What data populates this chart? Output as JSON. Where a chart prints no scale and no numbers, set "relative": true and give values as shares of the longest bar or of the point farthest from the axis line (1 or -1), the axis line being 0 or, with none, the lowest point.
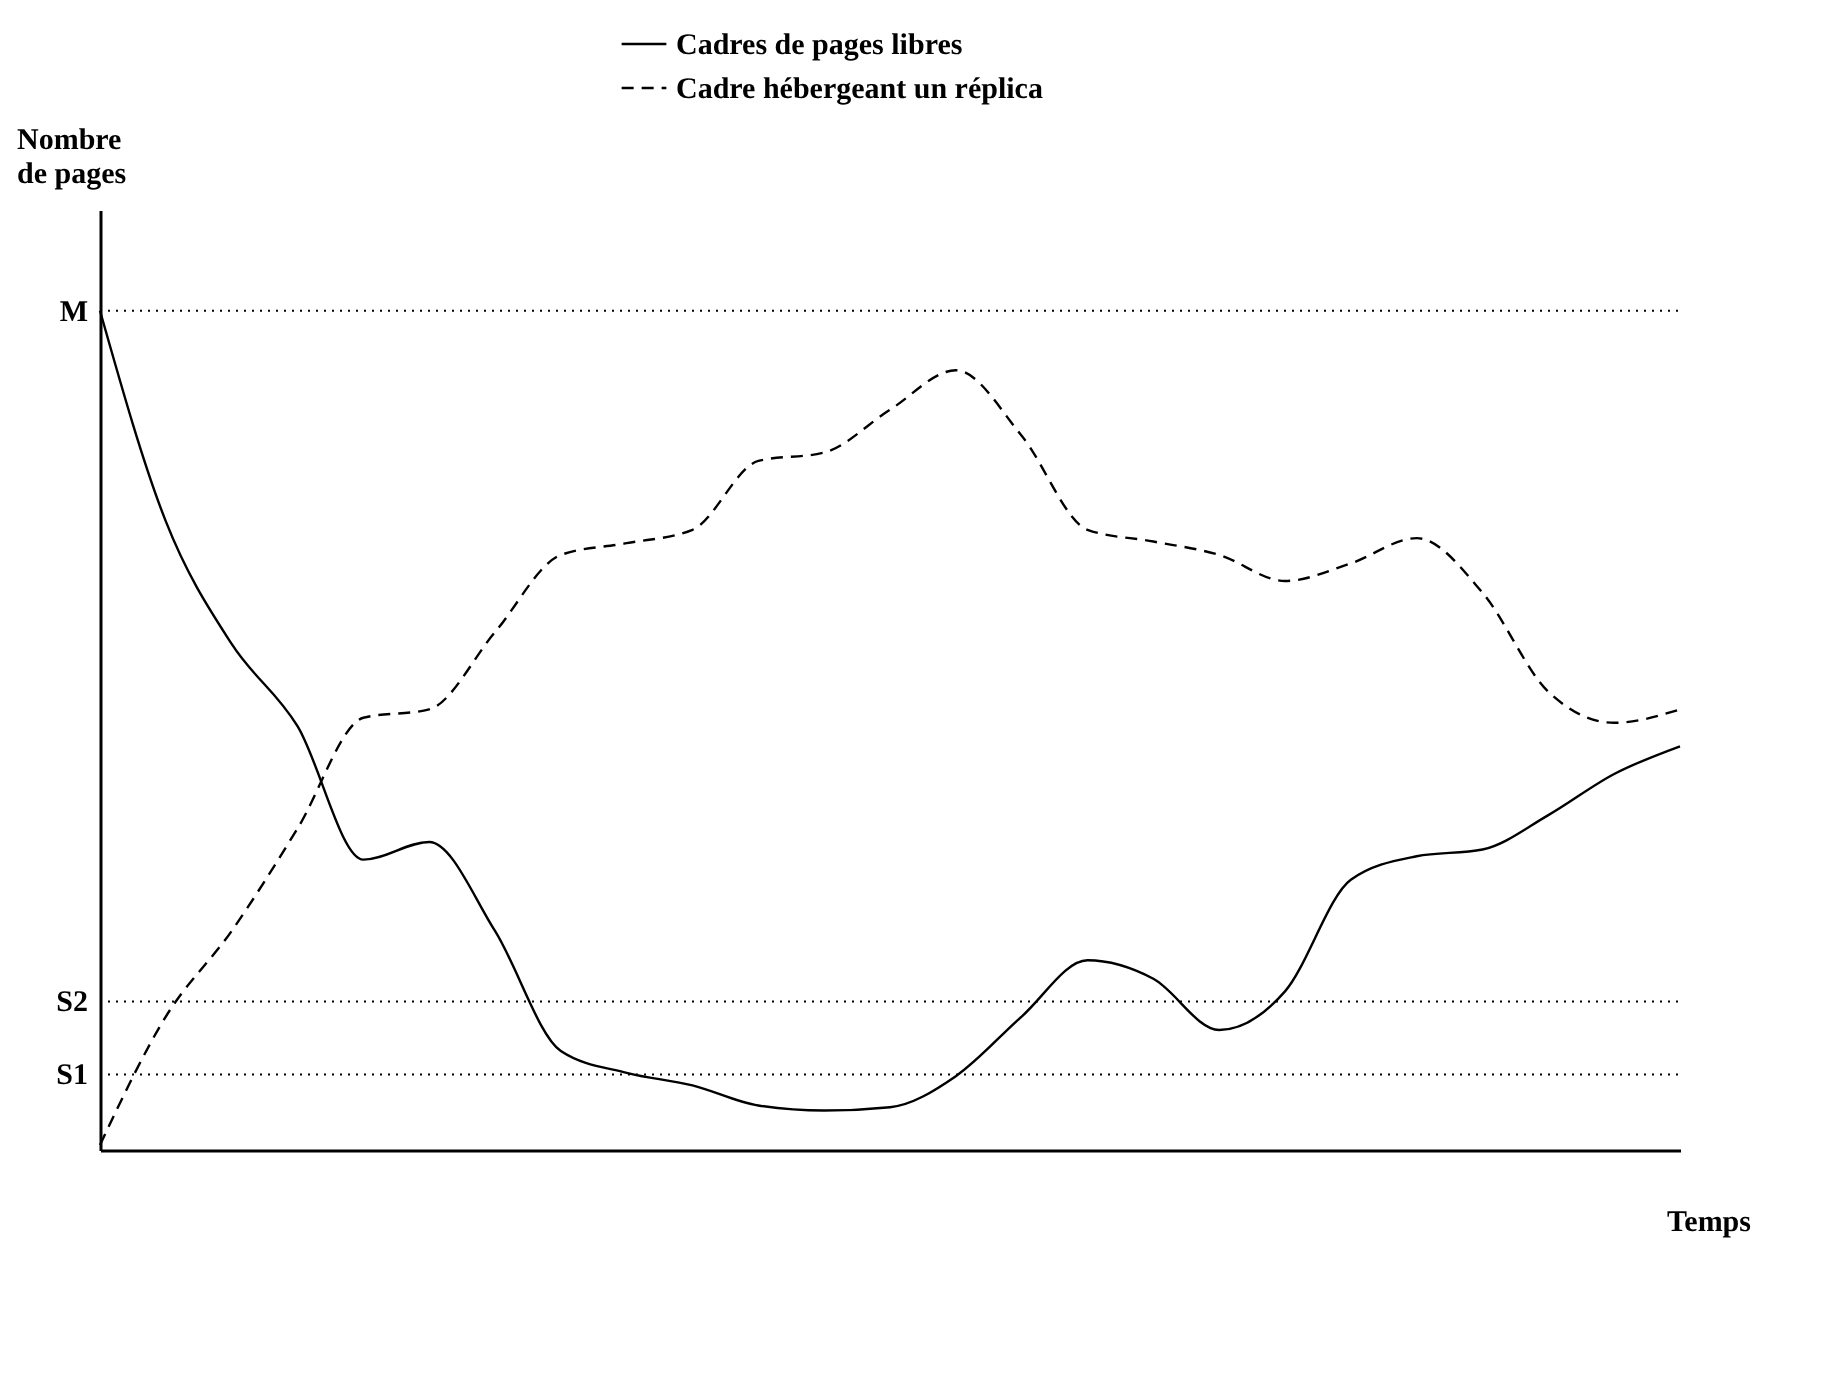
{
  "chart_data": {
    "type": "line",
    "relative": true,
    "ylabel": "Nombre\nde pages",
    "xlabel": "Temps",
    "legend": "top",
    "grid": false,
    "categories": [
      null,
      null,
      null,
      null,
      null,
      null,
      null,
      null,
      null,
      null,
      null,
      null,
      null,
      null,
      null,
      null,
      null,
      null,
      null,
      null,
      null,
      null,
      null,
      null,
      null
    ],
    "series": [
      {
        "name": "Cadres de pages libres",
        "color": "#000000",
        "line_style": "solid",
        "values": [
          1.0,
          0.749,
          0.603,
          0.505,
          0.346,
          0.367,
          0.261,
          0.118,
          0.092,
          0.077,
          0.053,
          0.047,
          0.051,
          0.088,
          0.159,
          0.226,
          0.204,
          0.143,
          0.189,
          0.322,
          0.35,
          0.358,
          0.399,
          0.448,
          0.481
        ]
      },
      {
        "name": "Cadre hébergeant un réplica",
        "color": "#000000",
        "line_style": "dashed",
        "values": [
          0.006,
          0.159,
          0.261,
          0.383,
          0.515,
          0.525,
          0.617,
          0.709,
          0.723,
          0.739,
          0.821,
          0.831,
          0.882,
          0.929,
          0.851,
          0.739,
          0.725,
          0.709,
          0.678,
          0.699,
          0.729,
          0.664,
          0.546,
          0.509,
          0.525
        ]
      }
    ],
    "ref_lines": [
      {
        "axis": "y",
        "value": 1.0,
        "label": "M",
        "color": "#000000",
        "line_style": "dotted"
      },
      {
        "axis": "y",
        "value": 0.177,
        "label": "S2",
        "color": "#000000",
        "line_style": "dotted"
      },
      {
        "axis": "y",
        "value": 0.09,
        "label": "S1",
        "color": "#000000",
        "line_style": "dotted"
      }
    ]
  }
}
